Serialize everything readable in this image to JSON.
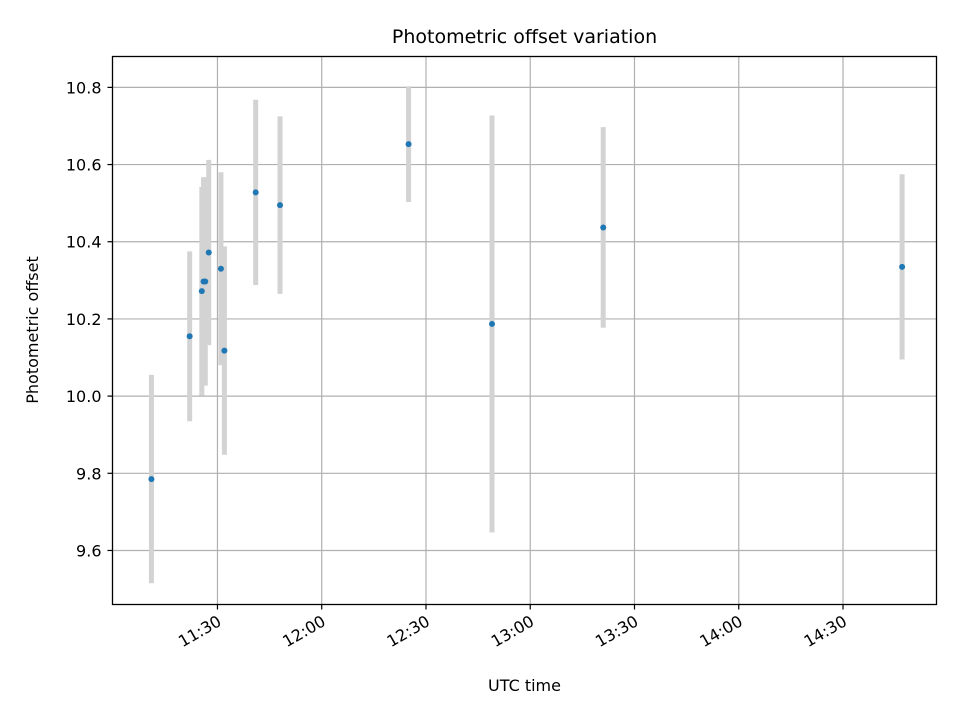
{
  "chart_data": {
    "type": "scatter",
    "title": "Photometric offset variation",
    "xlabel": "UTC time",
    "ylabel": "Photometric offset",
    "x_ticks": [
      "11:30",
      "12:00",
      "12:30",
      "13:00",
      "13:30",
      "14:00",
      "14:30"
    ],
    "x_tick_minutes": [
      690,
      720,
      750,
      780,
      810,
      840,
      870
    ],
    "xlim_minutes": [
      659.8,
      896.9
    ],
    "y_ticks": [
      "9.6",
      "9.8",
      "10.0",
      "10.2",
      "10.4",
      "10.6",
      "10.8"
    ],
    "y_tick_values": [
      9.6,
      9.8,
      10.0,
      10.2,
      10.4,
      10.6,
      10.8
    ],
    "ylim": [
      9.46,
      10.88
    ],
    "grid": true,
    "colors": {
      "point": "#1f77b4",
      "errorbar": "#d3d3d3",
      "grid": "#b0b0b0"
    },
    "points": [
      {
        "t": "11:11",
        "y": 9.785,
        "err": 0.27
      },
      {
        "t": "11:22",
        "y": 10.155,
        "err": 0.22
      },
      {
        "t": "11:25.5",
        "y": 10.272,
        "err": 0.27
      },
      {
        "t": "11:26",
        "y": 10.297,
        "err": 0.27
      },
      {
        "t": "11:26.5",
        "y": 10.297,
        "err": 0.27
      },
      {
        "t": "11:27.5",
        "y": 10.372,
        "err": 0.24
      },
      {
        "t": "11:31",
        "y": 10.33,
        "err": 0.25
      },
      {
        "t": "11:32",
        "y": 10.118,
        "err": 0.27
      },
      {
        "t": "11:41",
        "y": 10.528,
        "err": 0.24
      },
      {
        "t": "11:48",
        "y": 10.495,
        "err": 0.23
      },
      {
        "t": "12:25",
        "y": 10.653,
        "err": 0.15
      },
      {
        "t": "12:49",
        "y": 10.187,
        "err": 0.54
      },
      {
        "t": "13:21",
        "y": 10.437,
        "err": 0.26
      },
      {
        "t": "14:47",
        "y": 10.335,
        "err": 0.24
      }
    ]
  }
}
